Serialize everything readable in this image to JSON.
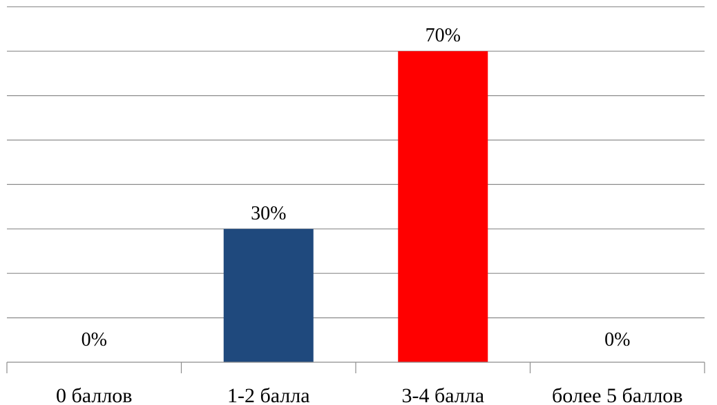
{
  "chart_data": {
    "type": "bar",
    "categories": [
      "0 баллов",
      "1-2 балла",
      "3-4 балла",
      "более 5 баллов"
    ],
    "values": [
      0,
      30,
      70,
      0
    ],
    "data_labels": [
      "0%",
      "30%",
      "70%",
      "0%"
    ],
    "colors": [
      "#1f497d",
      "#1f497d",
      "#ff0000",
      "#1f497d"
    ],
    "ylim": [
      0,
      80
    ],
    "ytick_step": 10,
    "grid": true,
    "legend": "none",
    "title": "",
    "xlabel": "",
    "ylabel": ""
  }
}
